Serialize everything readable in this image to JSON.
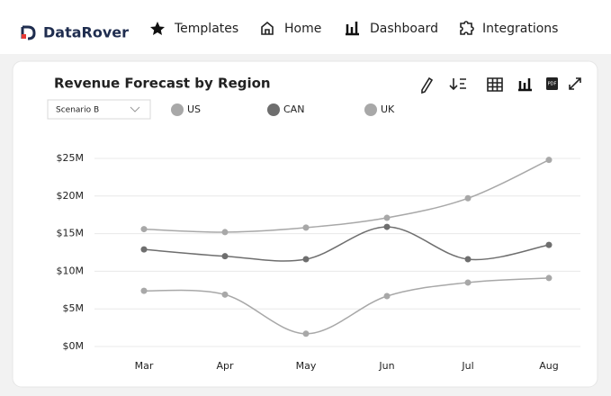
{
  "nav": {
    "brand": "DataRover",
    "items": [
      "Templates",
      "Home",
      "Dashboard",
      "Integrations"
    ]
  },
  "controls": {
    "scenario": "Scenario B",
    "pdf_icon": "PDF"
  },
  "chart_data": {
    "type": "line",
    "title": "Revenue Forecast by Region",
    "categories": [
      "Mar",
      "Apr",
      "May",
      "Jun",
      "Jul",
      "Aug"
    ],
    "series": [
      {
        "name": "US",
        "color": "#a8a8a8",
        "values": [
          15.6,
          15.2,
          15.8,
          17.1,
          19.7,
          24.8
        ]
      },
      {
        "name": "CAN",
        "color": "#6e6e6e",
        "values": [
          12.9,
          12.0,
          11.6,
          15.9,
          11.6,
          13.5
        ]
      },
      {
        "name": "UK",
        "color": "#a8a8a8",
        "values": [
          7.4,
          6.9,
          1.7,
          6.7,
          8.5,
          9.1
        ]
      }
    ],
    "ylim": [
      0,
      25
    ],
    "yticks": [
      {
        "value": 0,
        "label": "$0M"
      },
      {
        "value": 5,
        "label": "$5M"
      },
      {
        "value": 10,
        "label": "$10M"
      },
      {
        "value": 15,
        "label": "$15M"
      },
      {
        "value": 20,
        "label": "$20M"
      },
      {
        "value": 25,
        "label": "$25M"
      }
    ],
    "grid": true,
    "smooth": true
  }
}
